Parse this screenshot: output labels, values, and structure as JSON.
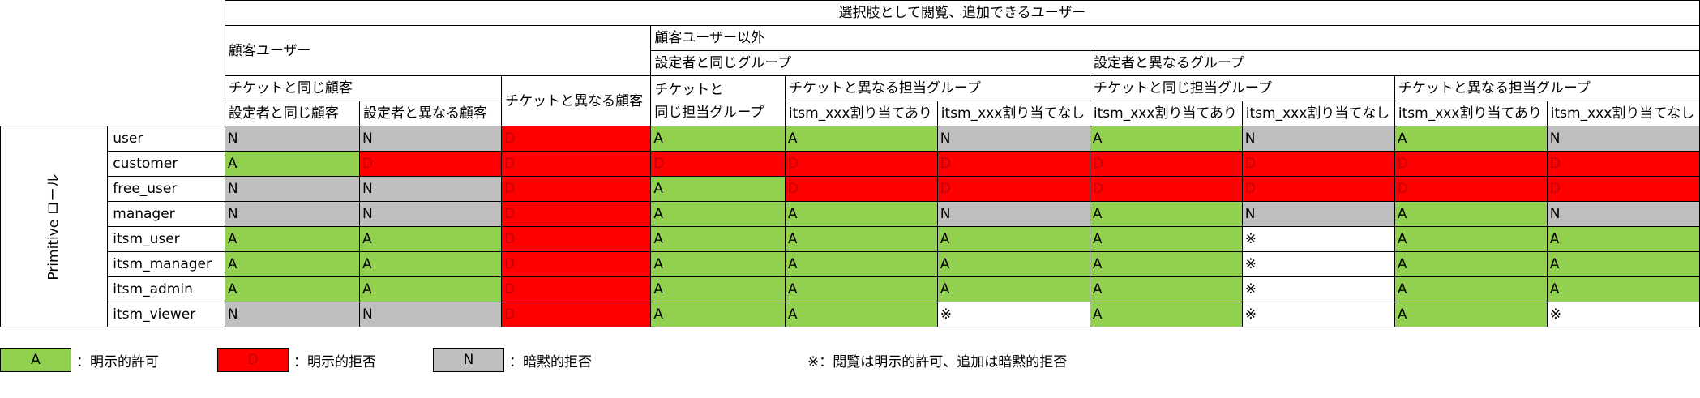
{
  "table": {
    "super_header": "選択肢として閲覧、追加できるユーザー",
    "group_customer": "顧客ユーザー",
    "group_non_customer": "顧客ユーザー以外",
    "group_same_group": "設定者と同じグループ",
    "group_diff_group": "設定者と異なるグループ",
    "sub_same_customer": "チケットと同じ顧客",
    "sub_diff_customer": "チケットと異なる顧客",
    "sub_same_group_line1": "チケットと",
    "sub_same_group_line2": "同じ担当グループ",
    "sub_diff_assign_group": "チケットと異なる担当グループ",
    "sub_same_assign_group": "チケットと同じ担当グループ",
    "sub_diff_assign_group_2": "チケットと異なる担当グループ",
    "col_same_as_setter": "設定者と同じ顧客",
    "col_diff_from_setter": "設定者と異なる顧客",
    "col_assigned_1": "itsm_xxx割り当てあり",
    "col_unassigned_1": "itsm_xxx割り当てなし",
    "col_assigned_2": "itsm_xxx割り当てあり",
    "col_unassigned_2": "itsm_xxx割り当てなし",
    "col_assigned_3": "itsm_xxx割り当てあり",
    "col_unassigned_3": "itsm_xxx割り当てなし",
    "row_group_label": "Primitive ロール",
    "rows": [
      {
        "role": "user",
        "values": [
          "N",
          "N",
          "D",
          "A",
          "A",
          "N",
          "A",
          "N",
          "A",
          "N"
        ]
      },
      {
        "role": "customer",
        "values": [
          "A",
          "D",
          "D",
          "D",
          "D",
          "D",
          "D",
          "D",
          "D",
          "D"
        ]
      },
      {
        "role": "free_user",
        "values": [
          "N",
          "N",
          "D",
          "A",
          "D",
          "D",
          "D",
          "D",
          "D",
          "D"
        ]
      },
      {
        "role": "manager",
        "values": [
          "N",
          "N",
          "D",
          "A",
          "A",
          "N",
          "A",
          "N",
          "A",
          "N"
        ]
      },
      {
        "role": "itsm_user",
        "values": [
          "A",
          "A",
          "D",
          "A",
          "A",
          "A",
          "A",
          "※",
          "A",
          "A"
        ]
      },
      {
        "role": "itsm_manager",
        "values": [
          "A",
          "A",
          "D",
          "A",
          "A",
          "A",
          "A",
          "※",
          "A",
          "A"
        ]
      },
      {
        "role": "itsm_admin",
        "values": [
          "A",
          "A",
          "D",
          "A",
          "A",
          "A",
          "A",
          "※",
          "A",
          "A"
        ]
      },
      {
        "role": "itsm_viewer",
        "values": [
          "N",
          "N",
          "D",
          "A",
          "A",
          "※",
          "A",
          "※",
          "A",
          "※"
        ]
      }
    ]
  },
  "legend": {
    "allow_code": "A",
    "allow_label": "：明示的許可",
    "deny_code": "D",
    "deny_label": "：明示的拒否",
    "implicit_code": "N",
    "implicit_label": "：暗黙的拒否",
    "note": "※：閲覧は明示的許可、追加は暗黙的拒否"
  },
  "colors": {
    "allow": "#92d050",
    "deny": "#ff0000",
    "implicit_deny": "#bfbfbf",
    "deny_text": "#c00000"
  }
}
